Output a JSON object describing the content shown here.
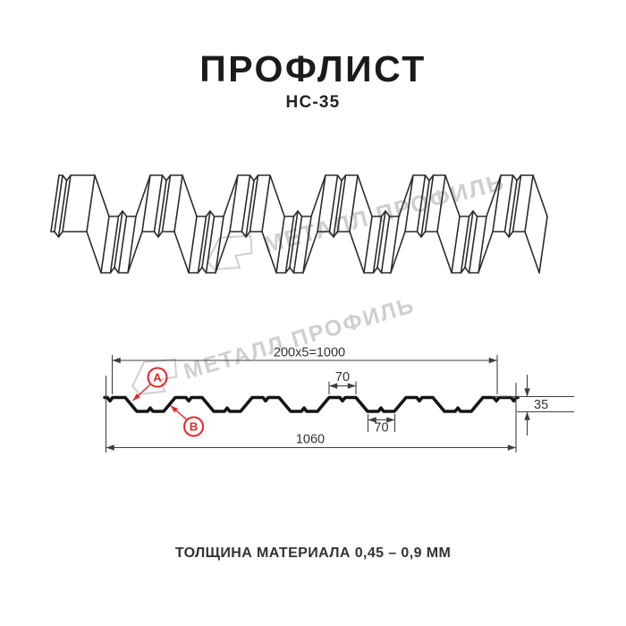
{
  "header": {
    "title": "ПРОФЛИСТ",
    "model": "НС-35"
  },
  "watermark": {
    "text": "МЕТАЛЛ ПРОФИЛЬ"
  },
  "diagram": {
    "type": "profiled-sheet-technical-drawing",
    "product": "НС-35",
    "dimensions": {
      "module_formula": "200x5=1000",
      "rib_top_width": "70",
      "rib_bottom_width": "70",
      "overall_width": "1060",
      "profile_height": "35"
    },
    "callouts": {
      "a": "A",
      "b": "B"
    }
  },
  "footer": {
    "thickness_note": "ТОЛЩИНА МАТЕРИАЛА 0,45 – 0,9 ММ"
  },
  "colors": {
    "accent_red": "#e52528",
    "line": "#232323",
    "dim_line": "#3f3f3f",
    "watermark": "#cfcfcf"
  }
}
